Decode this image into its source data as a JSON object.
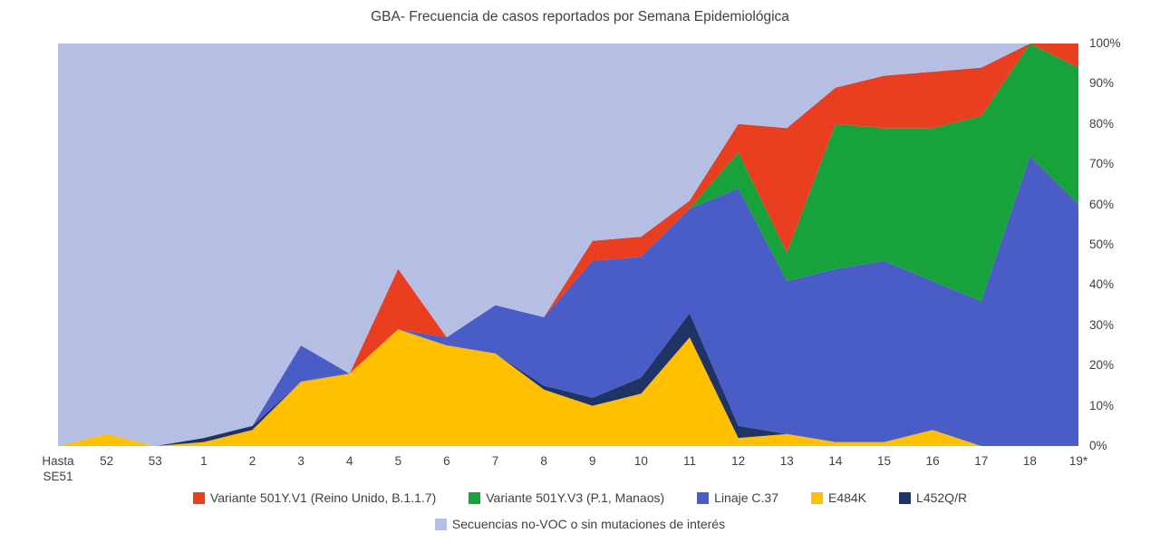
{
  "title": "GBA- Frecuencia de casos reportados por Semana Epidemiológica",
  "colors": {
    "v1_red": "#e93e1f",
    "v3_green": "#18a23c",
    "c37_blue": "#4a5cc5",
    "e484k_yellow": "#ffc000",
    "l452_navy": "#1f3364",
    "novoc_lavender": "#b5bfe4",
    "text": "#404040"
  },
  "chart_data": {
    "type": "area",
    "stacked": true,
    "percent": true,
    "grid": false,
    "legend_position": "bottom",
    "title": "GBA- Frecuencia de casos reportados por Semana Epidemiológica",
    "xlabel": "",
    "ylabel": "",
    "ylim": [
      0,
      100
    ],
    "y_ticks": [
      "0%",
      "10%",
      "20%",
      "30%",
      "40%",
      "50%",
      "60%",
      "70%",
      "80%",
      "90%",
      "100%"
    ],
    "categories": [
      "Hasta\nSE51",
      "52",
      "53",
      "1",
      "2",
      "3",
      "4",
      "5",
      "6",
      "7",
      "8",
      "9",
      "10",
      "11",
      "12",
      "13",
      "14",
      "15",
      "16",
      "17",
      "18",
      "19*"
    ],
    "series": [
      {
        "name": "E484K",
        "color_key": "e484k_yellow",
        "values": [
          0,
          3,
          0,
          1,
          4,
          16,
          18,
          29,
          25,
          23,
          14,
          10,
          13,
          27,
          2,
          3,
          1,
          1,
          4,
          0,
          0,
          0
        ]
      },
      {
        "name": "L452Q/R",
        "color_key": "l452_navy",
        "values": [
          0,
          0,
          0,
          1,
          1,
          0,
          0,
          0,
          0,
          0,
          1,
          2,
          4,
          6,
          3,
          0,
          0,
          0,
          0,
          0,
          0,
          0
        ]
      },
      {
        "name": "Linaje C.37",
        "color_key": "c37_blue",
        "values": [
          0,
          0,
          0,
          0,
          0,
          9,
          0,
          0,
          2,
          12,
          17,
          34,
          30,
          26,
          59,
          38,
          43,
          45,
          37,
          36,
          72,
          60
        ]
      },
      {
        "name": "Variante 501Y.V3 (P.1, Manaos)",
        "color_key": "v3_green",
        "values": [
          0,
          0,
          0,
          0,
          0,
          0,
          0,
          0,
          0,
          0,
          0,
          0,
          0,
          0,
          9,
          7,
          36,
          33,
          38,
          46,
          28,
          34
        ]
      },
      {
        "name": "Variante 501Y.V1 (Reino Unido, B.1.1.7)",
        "color_key": "v1_red",
        "values": [
          0,
          0,
          0,
          0,
          0,
          0,
          0,
          15,
          0,
          0,
          0,
          5,
          5,
          2,
          7,
          31,
          9,
          13,
          14,
          12,
          0,
          6
        ]
      },
      {
        "name": "Secuencias no-VOC o sin mutaciones de interés",
        "color_key": "novoc_lavender",
        "values": [
          100,
          97,
          100,
          98,
          95,
          75,
          82,
          56,
          73,
          65,
          68,
          49,
          48,
          39,
          20,
          21,
          11,
          8,
          7,
          6,
          0,
          0
        ]
      }
    ]
  },
  "legend": {
    "row1": [
      {
        "label": "Variante 501Y.V1 (Reino Unido, B.1.1.7)",
        "color_key": "v1_red"
      },
      {
        "label": "Variante 501Y.V3 (P.1, Manaos)",
        "color_key": "v3_green"
      },
      {
        "label": "Linaje C.37",
        "color_key": "c37_blue"
      },
      {
        "label": "E484K",
        "color_key": "e484k_yellow"
      },
      {
        "label": "L452Q/R",
        "color_key": "l452_navy"
      }
    ],
    "row2": [
      {
        "label": "Secuencias no-VOC o sin mutaciones de interés",
        "color_key": "novoc_lavender"
      }
    ]
  }
}
